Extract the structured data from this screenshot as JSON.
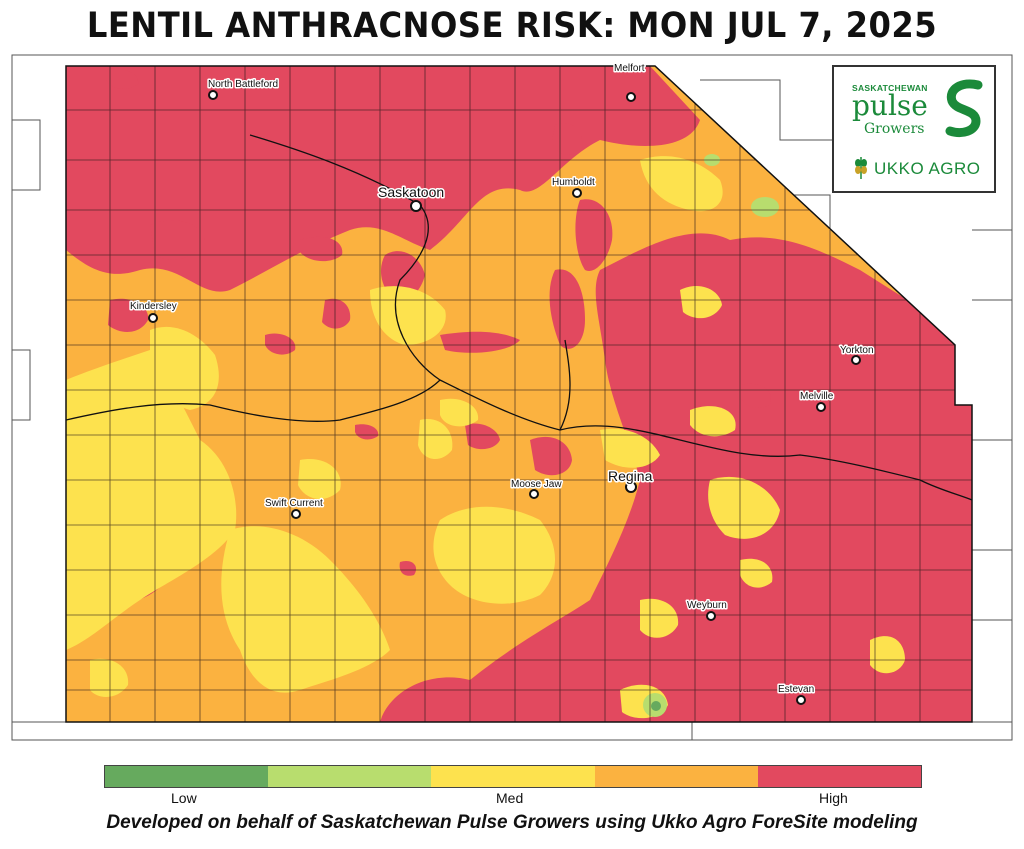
{
  "title": "LENTIL ANTHRACNOSE RISK: MON JUL 7, 2025",
  "cities": [
    {
      "name": "North Battleford",
      "size": "small"
    },
    {
      "name": "Melfort",
      "size": "small"
    },
    {
      "name": "Saskatoon",
      "size": "large"
    },
    {
      "name": "Humboldt",
      "size": "small"
    },
    {
      "name": "Kindersley",
      "size": "small"
    },
    {
      "name": "Yorkton",
      "size": "small"
    },
    {
      "name": "Melville",
      "size": "small"
    },
    {
      "name": "Regina",
      "size": "large"
    },
    {
      "name": "Moose Jaw",
      "size": "small"
    },
    {
      "name": "Swift Current",
      "size": "small"
    },
    {
      "name": "Weyburn",
      "size": "small"
    },
    {
      "name": "Estevan",
      "size": "small"
    }
  ],
  "logo": {
    "line1": "SASKATCHEWAN",
    "line2": "pulse",
    "line3": "Growers",
    "ukko": "UKKO AGRO"
  },
  "legend": {
    "colors": [
      "#66aa5e",
      "#b8dd6e",
      "#fde24e",
      "#fbb240",
      "#e2495f"
    ],
    "low": "Low",
    "med": "Med",
    "high": "High"
  },
  "footer": "Developed on behalf of Saskatchewan Pulse Growers using Ukko Agro ForeSite modeling"
}
